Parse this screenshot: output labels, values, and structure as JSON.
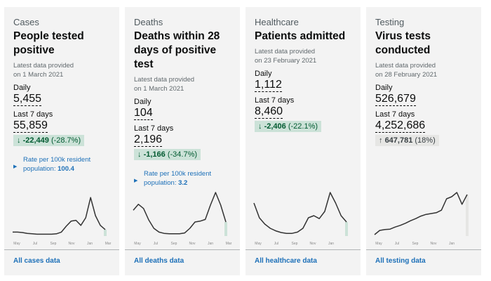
{
  "cards": [
    {
      "category": "Cases",
      "title_lines": [
        "People tested",
        "positive"
      ],
      "latest": [
        "Latest data provided",
        "on 1 March 2021"
      ],
      "daily_label": "Daily",
      "daily": "5,455",
      "week_label": "Last 7 days",
      "week": "55,859",
      "change_arrow": "↓",
      "change": "-22,449",
      "change_pct": "(-28.7%)",
      "change_direction": "down",
      "rate_label": "Rate per 100k resident",
      "rate_prefix": "population: ",
      "rate_value": "100.4",
      "axis": [
        "May",
        "Jul",
        "Sep",
        "Nov",
        "Jan",
        "Mar"
      ],
      "trend": [
        6,
        6,
        5,
        3,
        2,
        1,
        1,
        1,
        1,
        2,
        6,
        20,
        32,
        34,
        22,
        40,
        88,
        45,
        22,
        12
      ],
      "link": "All cases data"
    },
    {
      "category": "Deaths",
      "title_lines": [
        "Deaths within 28",
        "days of positive",
        "test"
      ],
      "latest": [
        "Latest data provided",
        "on 1 March 2021"
      ],
      "daily_label": "Daily",
      "daily": "104",
      "week_label": "Last 7 days",
      "week": "2,196",
      "change_arrow": "↓",
      "change": "-1,166",
      "change_pct": "(-34.7%)",
      "change_direction": "down",
      "rate_label": "Rate per 100k resident",
      "rate_prefix": "population: ",
      "rate_value": "3.2",
      "axis": [
        "May",
        "Jul",
        "Sep",
        "Nov",
        "Jan",
        "Mar"
      ],
      "trend": [
        58,
        72,
        62,
        35,
        15,
        6,
        3,
        2,
        2,
        2,
        4,
        15,
        30,
        32,
        36,
        70,
        100,
        70,
        30
      ],
      "link": "All deaths data"
    },
    {
      "category": "Healthcare",
      "title_lines": [
        "Patients admitted"
      ],
      "latest": [
        "Latest data provided",
        "on 23 February 2021"
      ],
      "daily_label": "Daily",
      "daily": "1,112",
      "week_label": "Last 7 days",
      "week": "8,460",
      "change_arrow": "↓",
      "change": "-2,406",
      "change_pct": "(-22.1%)",
      "change_direction": "down",
      "axis": [
        "May",
        "Jul",
        "Sep",
        "Nov",
        "Jan"
      ],
      "trend": [
        75,
        40,
        25,
        15,
        9,
        5,
        3,
        3,
        6,
        15,
        40,
        45,
        38,
        55,
        100,
        75,
        45,
        30
      ],
      "link": "All healthcare data"
    },
    {
      "category": "Testing",
      "title_lines": [
        "Virus tests",
        "conducted"
      ],
      "latest": [
        "Latest data provided",
        "on 28 February 2021"
      ],
      "daily_label": "Daily",
      "daily": "526,679",
      "week_label": "Last 7 days",
      "week": "4,252,686",
      "change_arrow": "↑",
      "change": "647,781",
      "change_pct": "(18%)",
      "change_direction": "up",
      "axis": [
        "May",
        "Jul",
        "Sep",
        "Nov",
        "Jan"
      ],
      "trend": [
        0,
        10,
        12,
        13,
        18,
        22,
        27,
        33,
        38,
        44,
        48,
        50,
        52,
        58,
        85,
        90,
        100,
        72,
        95
      ],
      "link": "All testing data"
    }
  ],
  "colors": {
    "down_bg": "#cce2d8",
    "down_text": "#005a30",
    "up_bg": "#e6e6e4",
    "link": "#1d70b8",
    "line": "#333333"
  }
}
